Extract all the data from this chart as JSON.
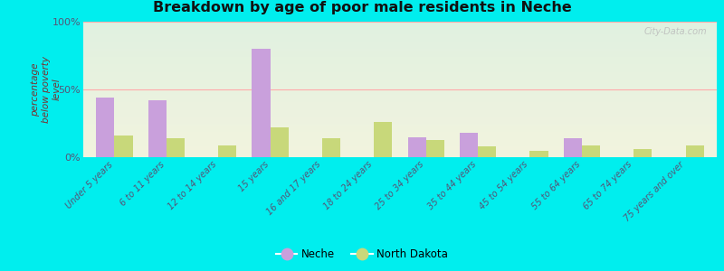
{
  "title": "Breakdown by age of poor male residents in Neche",
  "ylabel_lines": [
    "percentage",
    "below poverty",
    "level"
  ],
  "categories": [
    "Under 5 years",
    "6 to 11 years",
    "12 to 14 years",
    "15 years",
    "16 and 17 years",
    "18 to 24 years",
    "25 to 34 years",
    "35 to 44 years",
    "45 to 54 years",
    "55 to 64 years",
    "65 to 74 years",
    "75 years and over"
  ],
  "neche_values": [
    44,
    42,
    0,
    80,
    0,
    0,
    15,
    18,
    0,
    14,
    0,
    0
  ],
  "nd_values": [
    16,
    14,
    9,
    22,
    14,
    26,
    13,
    8,
    5,
    9,
    6,
    9
  ],
  "neche_color": "#c9a0dc",
  "nd_color": "#c8d87a",
  "background_color_top": "#e0f0e0",
  "background_color_bottom": "#f0f0d8",
  "outer_bg": "#00eeee",
  "title_color": "#111111",
  "axis_label_color": "#7a3030",
  "tick_label_color": "#555577",
  "yticks": [
    0,
    50,
    100
  ],
  "ytick_labels": [
    "0%",
    "50%",
    "100%"
  ],
  "bar_width": 0.35,
  "watermark": "City-Data.com",
  "legend_neche": "Neche",
  "legend_nd": "North Dakota",
  "hline_color": "#ffaaaa",
  "hline_50_color": "#ffaaaa"
}
